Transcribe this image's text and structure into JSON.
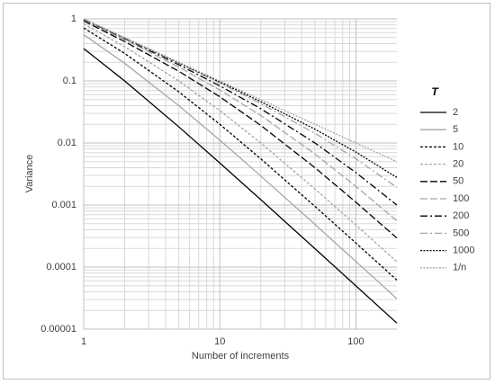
{
  "chart_data": {
    "type": "line",
    "x_label": "Number of increments",
    "y_label": "Variance",
    "legend_title": "T",
    "legend_position": "right",
    "x": [
      1,
      2,
      5,
      10,
      20,
      50,
      100,
      200
    ],
    "xlim": [
      1,
      200
    ],
    "ylim": [
      1e-05,
      1
    ],
    "xticks": [
      1,
      10,
      100
    ],
    "yticks": [
      1e-05,
      0.0001,
      0.001,
      0.01,
      0.1,
      1
    ],
    "log_x": true,
    "log_y": true,
    "grid": true,
    "minor_grid": true,
    "series": [
      {
        "name": "2",
        "color": "#000000",
        "dash": "solid",
        "values": [
          0.333,
          0.1,
          0.0182,
          0.00476,
          0.00122,
          0.000198,
          4.98e-05,
          1.25e-05
        ]
      },
      {
        "name": "5",
        "color": "#a6a6a6",
        "dash": "solid",
        "values": [
          0.556,
          0.192,
          0.04,
          0.0111,
          0.00294,
          0.000488,
          0.000123,
          3.1e-05
        ]
      },
      {
        "name": "10",
        "color": "#000000",
        "dash": "short",
        "values": [
          0.714,
          0.278,
          0.0667,
          0.02,
          0.00556,
          0.000952,
          0.000244,
          6.17e-05
        ]
      },
      {
        "name": "20",
        "color": "#a6a6a6",
        "dash": "short",
        "values": [
          0.833,
          0.357,
          0.1,
          0.0333,
          0.01,
          0.00182,
          0.000476,
          0.000122
        ]
      },
      {
        "name": "50",
        "color": "#000000",
        "dash": "long",
        "values": [
          0.926,
          0.431,
          0.143,
          0.0556,
          0.0192,
          0.004,
          0.00111,
          0.000294
        ]
      },
      {
        "name": "100",
        "color": "#a6a6a6",
        "dash": "long",
        "values": [
          0.962,
          0.463,
          0.167,
          0.0714,
          0.0278,
          0.00667,
          0.002,
          0.000556
        ]
      },
      {
        "name": "200",
        "color": "#000000",
        "dash": "dashdot",
        "values": [
          0.98,
          0.481,
          0.182,
          0.0833,
          0.0357,
          0.01,
          0.00333,
          0.001
        ]
      },
      {
        "name": "500",
        "color": "#a6a6a6",
        "dash": "dashdot",
        "values": [
          0.992,
          0.492,
          0.192,
          0.0926,
          0.0431,
          0.0143,
          0.00556,
          0.00192
        ]
      },
      {
        "name": "1000",
        "color": "#000000",
        "dash": "dot",
        "values": [
          0.996,
          0.496,
          0.196,
          0.0962,
          0.0463,
          0.0167,
          0.00714,
          0.00278
        ]
      },
      {
        "name": "1/n",
        "color": "#a6a6a6",
        "dash": "dot",
        "values": [
          1,
          0.5,
          0.2,
          0.1,
          0.05,
          0.02,
          0.01,
          0.005
        ]
      }
    ]
  }
}
